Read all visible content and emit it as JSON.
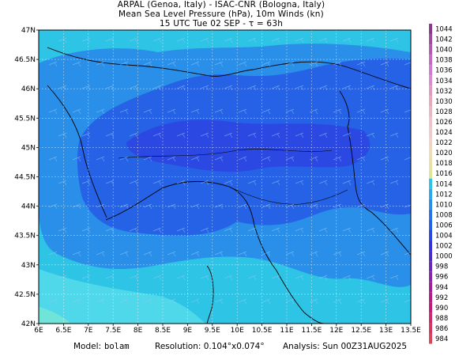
{
  "header": {
    "line1": "ARPAL (Genoa, Italy)  -  ISAC-CNR (Bologna, Italy)",
    "line2": "Mean Sea Level Pressure (hPa), 10m Winds (kn)",
    "line3": "15 UTC Tue 02 SEP   -  τ = 63h"
  },
  "chart_data": {
    "type": "map",
    "title": "Mean Sea Level Pressure (hPa), 10m Winds (kn)",
    "x_ticks": [
      "6E",
      "6.5E",
      "7E",
      "7.5E",
      "8E",
      "8.5E",
      "9E",
      "9.5E",
      "10E",
      "10.5E",
      "11E",
      "11.5E",
      "12E",
      "12.5E",
      "13E",
      "13.5E"
    ],
    "y_ticks": [
      "47N",
      "46.5N",
      "46N",
      "45.5N",
      "45N",
      "44.5N",
      "44N",
      "43.5N",
      "43N",
      "42.5N",
      "42N"
    ],
    "xlim": [
      6,
      13.5
    ],
    "ylim": [
      42,
      47
    ],
    "grid": true,
    "colorbar": {
      "levels": [
        1044,
        1042,
        1040,
        1038,
        1036,
        1034,
        1032,
        1030,
        1028,
        1026,
        1024,
        1022,
        1020,
        1018,
        1016,
        1014,
        1012,
        1010,
        1008,
        1006,
        1004,
        1002,
        1000,
        998,
        996,
        994,
        992,
        990,
        988,
        986,
        984
      ]
    },
    "pressure_field": {
      "background_range": [
        1012,
        1014
      ],
      "inner_range": [
        1008,
        1010
      ],
      "core_range": [
        1006,
        1008
      ]
    }
  },
  "footer": {
    "model_label": "Model:",
    "model_value": "bolam",
    "resolution": "Resolution: 0.104°x0.074°",
    "analysis": "Analysis: Sun 00Z31AUG2025"
  }
}
